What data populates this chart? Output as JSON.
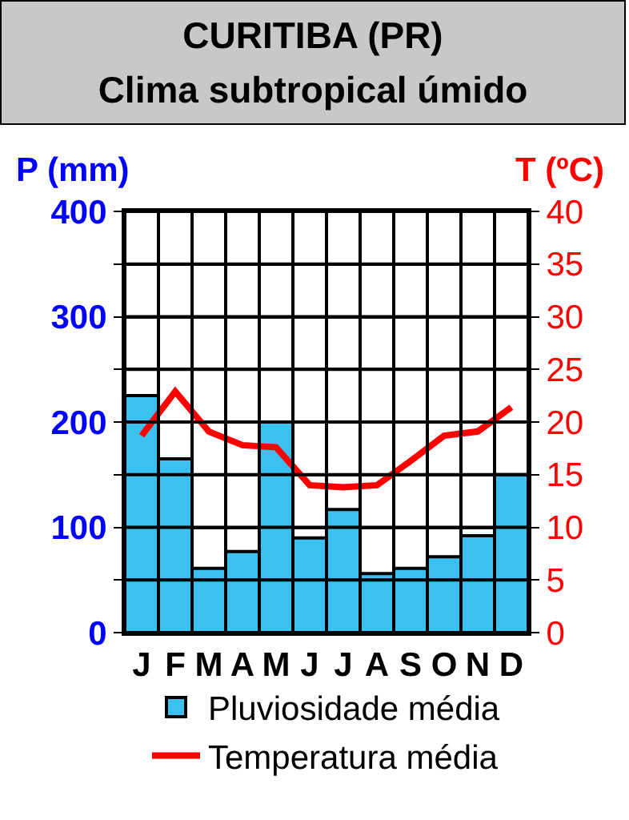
{
  "chart_data": {
    "type": "bar",
    "title": "CURITIBA (PR)",
    "subtitle": "Clima subtropical úmido",
    "ylabel": "P (mm)",
    "y2label": "T (ºC)",
    "categories": [
      "J",
      "F",
      "M",
      "A",
      "M",
      "J",
      "J",
      "A",
      "S",
      "O",
      "N",
      "D"
    ],
    "series": [
      {
        "name": "Pluviosidade média",
        "color": "#3cc0f0",
        "values": [
          225,
          165,
          61,
          77,
          200,
          90,
          117,
          56,
          61,
          72,
          92,
          150
        ]
      },
      {
        "name": "Temperatura média",
        "type": "line",
        "axis": "y2",
        "color": "#ff0000",
        "values": [
          18.7,
          22.9,
          19.1,
          17.8,
          17.6,
          14.0,
          13.8,
          14.0,
          16.3,
          18.7,
          19.1,
          21.4
        ]
      }
    ],
    "ylim": [
      0,
      400
    ],
    "yticks": [
      0,
      {
        "value": 50,
        "label": null
      },
      100,
      {
        "value": 150,
        "label": null
      },
      200,
      {
        "value": 250,
        "label": null
      },
      300,
      {
        "value": 350,
        "label": null
      },
      400
    ],
    "y2lim": [
      0,
      40
    ],
    "y2ticks": [
      0,
      5,
      10,
      15,
      20,
      25,
      30,
      35,
      40
    ],
    "grid": true,
    "legend": "bottom",
    "marker": "none",
    "line_style": "solid"
  }
}
